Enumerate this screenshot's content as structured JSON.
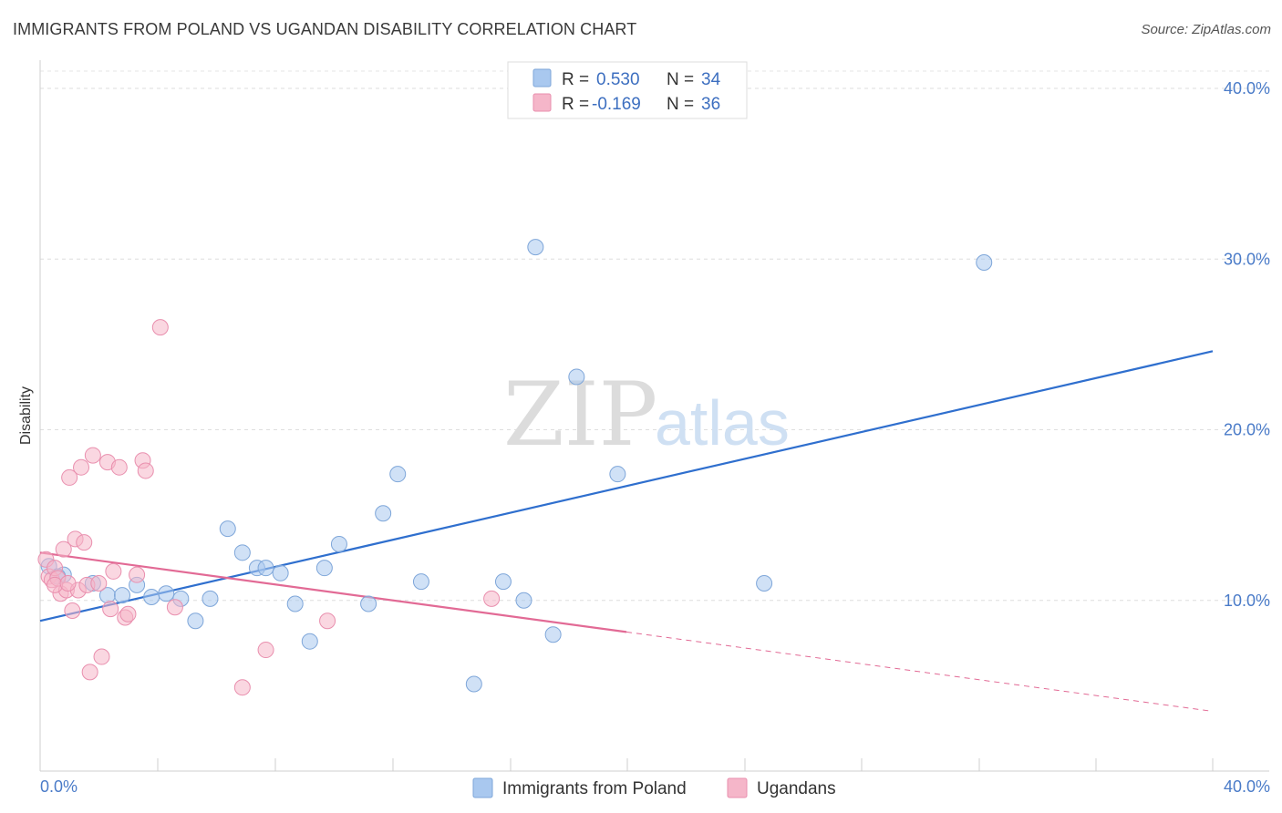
{
  "title": "IMMIGRANTS FROM POLAND VS UGANDAN DISABILITY CORRELATION CHART",
  "source": "Source: ZipAtlas.com",
  "watermark": {
    "zip": "ZIP",
    "atlas": "atlas"
  },
  "legend": {
    "rows": [
      {
        "r_label": "R =",
        "r_value": "0.530",
        "n_label": "N =",
        "n_value": "34",
        "color": "#a9c8ef"
      },
      {
        "r_label": "R =",
        "r_value": "-0.169",
        "n_label": "N =",
        "n_value": "36",
        "color": "#f5b6c9"
      }
    ]
  },
  "chart_data": {
    "type": "scatter",
    "ylabel": "Disability",
    "xlim": [
      0,
      40
    ],
    "ylim": [
      0,
      40
    ],
    "x_tick_labels": [
      "0.0%",
      "40.0%"
    ],
    "y_ticks": [
      10,
      20,
      30,
      40
    ],
    "y_tick_labels": [
      "10.0%",
      "20.0%",
      "30.0%",
      "40.0%"
    ],
    "grid": true,
    "series": [
      {
        "name": "Immigrants from Poland",
        "color": "#a9c8ef",
        "stroke": "#7ea6d9",
        "trend_color": "#2f6fce",
        "trend": {
          "x0": 0,
          "y0": 8.8,
          "x1": 40,
          "y1": 24.6,
          "solid_to": 40
        },
        "points": [
          [
            0.3,
            12.0
          ],
          [
            0.8,
            11.5
          ],
          [
            1.8,
            11.0
          ],
          [
            2.3,
            10.3
          ],
          [
            2.8,
            10.3
          ],
          [
            3.3,
            10.9
          ],
          [
            3.8,
            10.2
          ],
          [
            4.3,
            10.4
          ],
          [
            4.8,
            10.1
          ],
          [
            5.3,
            8.8
          ],
          [
            5.8,
            10.1
          ],
          [
            6.4,
            14.2
          ],
          [
            6.9,
            12.8
          ],
          [
            7.4,
            11.9
          ],
          [
            7.7,
            11.9
          ],
          [
            8.2,
            11.6
          ],
          [
            8.7,
            9.8
          ],
          [
            9.2,
            7.6
          ],
          [
            9.7,
            11.9
          ],
          [
            10.2,
            13.3
          ],
          [
            11.2,
            9.8
          ],
          [
            11.7,
            15.1
          ],
          [
            12.2,
            17.4
          ],
          [
            13.0,
            11.1
          ],
          [
            14.8,
            5.1
          ],
          [
            15.8,
            11.1
          ],
          [
            16.5,
            10.0
          ],
          [
            16.9,
            30.7
          ],
          [
            17.5,
            8.0
          ],
          [
            18.3,
            23.1
          ],
          [
            19.7,
            17.4
          ],
          [
            24.7,
            11.0
          ],
          [
            32.2,
            29.8
          ],
          [
            0.6,
            11.4
          ]
        ]
      },
      {
        "name": "Ugandans",
        "color": "#f5b6c9",
        "stroke": "#e98fae",
        "trend_color": "#e26a95",
        "trend": {
          "x0": 0,
          "y0": 12.8,
          "x1": 40,
          "y1": 3.5,
          "solid_to": 20
        },
        "points": [
          [
            0.2,
            12.4
          ],
          [
            0.3,
            11.4
          ],
          [
            0.4,
            11.2
          ],
          [
            0.5,
            11.9
          ],
          [
            0.6,
            11.3
          ],
          [
            0.7,
            10.4
          ],
          [
            0.8,
            13.0
          ],
          [
            0.9,
            10.6
          ],
          [
            1.0,
            17.2
          ],
          [
            1.1,
            9.4
          ],
          [
            1.2,
            13.6
          ],
          [
            1.3,
            10.6
          ],
          [
            1.4,
            17.8
          ],
          [
            1.5,
            13.4
          ],
          [
            1.6,
            10.9
          ],
          [
            1.7,
            5.8
          ],
          [
            1.8,
            18.5
          ],
          [
            2.0,
            11.0
          ],
          [
            2.1,
            6.7
          ],
          [
            2.3,
            18.1
          ],
          [
            2.4,
            9.5
          ],
          [
            2.5,
            11.7
          ],
          [
            2.7,
            17.8
          ],
          [
            2.9,
            9.0
          ],
          [
            3.0,
            9.2
          ],
          [
            3.3,
            11.5
          ],
          [
            3.5,
            18.2
          ],
          [
            3.6,
            17.6
          ],
          [
            4.1,
            26.0
          ],
          [
            4.6,
            9.6
          ],
          [
            6.9,
            4.9
          ],
          [
            7.7,
            7.1
          ],
          [
            9.8,
            8.8
          ],
          [
            15.4,
            10.1
          ],
          [
            0.5,
            10.9
          ],
          [
            0.95,
            11.0
          ]
        ]
      }
    ]
  }
}
